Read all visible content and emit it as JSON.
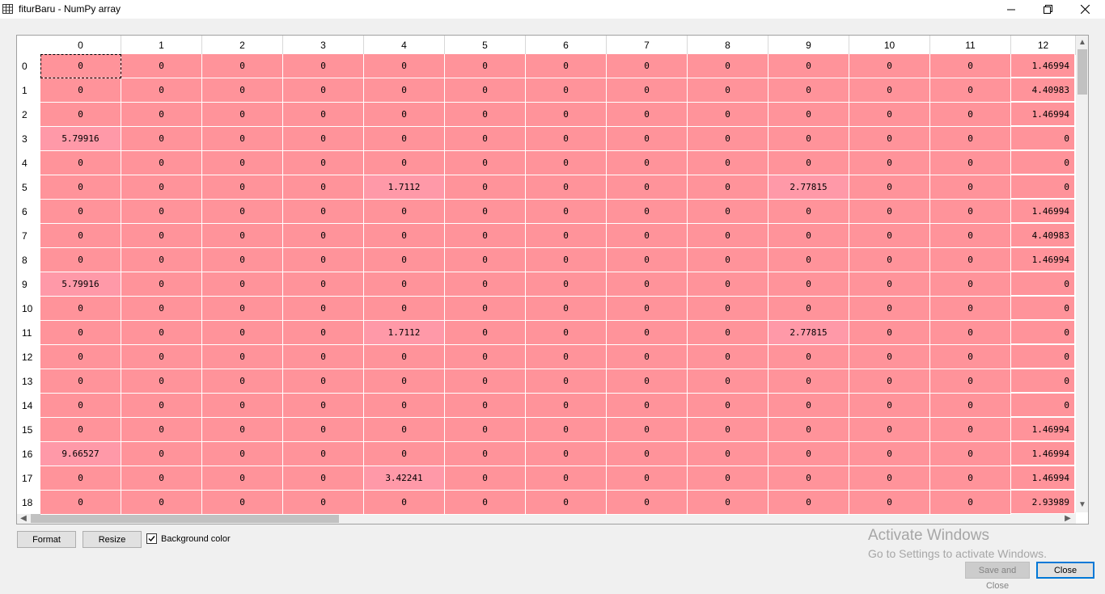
{
  "window": {
    "title": "fiturBaru - NumPy array"
  },
  "icons": {
    "app": "table-icon",
    "minimize": "minimize-icon",
    "maximize": "restore-icon",
    "close": "close-icon"
  },
  "table": {
    "columns": [
      "0",
      "1",
      "2",
      "3",
      "4",
      "5",
      "6",
      "7",
      "8",
      "9",
      "10",
      "11",
      "12"
    ],
    "rows": [
      {
        "label": "0",
        "cells": [
          "0",
          "0",
          "0",
          "0",
          "0",
          "0",
          "0",
          "0",
          "0",
          "0",
          "0",
          "0",
          "1.46994"
        ]
      },
      {
        "label": "1",
        "cells": [
          "0",
          "0",
          "0",
          "0",
          "0",
          "0",
          "0",
          "0",
          "0",
          "0",
          "0",
          "0",
          "4.40983"
        ]
      },
      {
        "label": "2",
        "cells": [
          "0",
          "0",
          "0",
          "0",
          "0",
          "0",
          "0",
          "0",
          "0",
          "0",
          "0",
          "0",
          "1.46994"
        ]
      },
      {
        "label": "3",
        "cells": [
          "5.79916",
          "0",
          "0",
          "0",
          "0",
          "0",
          "0",
          "0",
          "0",
          "0",
          "0",
          "0",
          "0"
        ]
      },
      {
        "label": "4",
        "cells": [
          "0",
          "0",
          "0",
          "0",
          "0",
          "0",
          "0",
          "0",
          "0",
          "0",
          "0",
          "0",
          "0"
        ]
      },
      {
        "label": "5",
        "cells": [
          "0",
          "0",
          "0",
          "0",
          "1.7112",
          "0",
          "0",
          "0",
          "0",
          "2.77815",
          "0",
          "0",
          "0"
        ]
      },
      {
        "label": "6",
        "cells": [
          "0",
          "0",
          "0",
          "0",
          "0",
          "0",
          "0",
          "0",
          "0",
          "0",
          "0",
          "0",
          "1.46994"
        ]
      },
      {
        "label": "7",
        "cells": [
          "0",
          "0",
          "0",
          "0",
          "0",
          "0",
          "0",
          "0",
          "0",
          "0",
          "0",
          "0",
          "4.40983"
        ]
      },
      {
        "label": "8",
        "cells": [
          "0",
          "0",
          "0",
          "0",
          "0",
          "0",
          "0",
          "0",
          "0",
          "0",
          "0",
          "0",
          "1.46994"
        ]
      },
      {
        "label": "9",
        "cells": [
          "5.79916",
          "0",
          "0",
          "0",
          "0",
          "0",
          "0",
          "0",
          "0",
          "0",
          "0",
          "0",
          "0"
        ]
      },
      {
        "label": "10",
        "cells": [
          "0",
          "0",
          "0",
          "0",
          "0",
          "0",
          "0",
          "0",
          "0",
          "0",
          "0",
          "0",
          "0"
        ]
      },
      {
        "label": "11",
        "cells": [
          "0",
          "0",
          "0",
          "0",
          "1.7112",
          "0",
          "0",
          "0",
          "0",
          "2.77815",
          "0",
          "0",
          "0"
        ]
      },
      {
        "label": "12",
        "cells": [
          "0",
          "0",
          "0",
          "0",
          "0",
          "0",
          "0",
          "0",
          "0",
          "0",
          "0",
          "0",
          "0"
        ]
      },
      {
        "label": "13",
        "cells": [
          "0",
          "0",
          "0",
          "0",
          "0",
          "0",
          "0",
          "0",
          "0",
          "0",
          "0",
          "0",
          "0"
        ]
      },
      {
        "label": "14",
        "cells": [
          "0",
          "0",
          "0",
          "0",
          "0",
          "0",
          "0",
          "0",
          "0",
          "0",
          "0",
          "0",
          "0"
        ]
      },
      {
        "label": "15",
        "cells": [
          "0",
          "0",
          "0",
          "0",
          "0",
          "0",
          "0",
          "0",
          "0",
          "0",
          "0",
          "0",
          "1.46994"
        ]
      },
      {
        "label": "16",
        "cells": [
          "9.66527",
          "0",
          "0",
          "0",
          "0",
          "0",
          "0",
          "0",
          "0",
          "0",
          "0",
          "0",
          "1.46994"
        ]
      },
      {
        "label": "17",
        "cells": [
          "0",
          "0",
          "0",
          "0",
          "3.42241",
          "0",
          "0",
          "0",
          "0",
          "0",
          "0",
          "0",
          "1.46994"
        ]
      },
      {
        "label": "18",
        "cells": [
          "0",
          "0",
          "0",
          "0",
          "0",
          "0",
          "0",
          "0",
          "0",
          "0",
          "0",
          "0",
          "2.93989"
        ]
      }
    ],
    "cell_color": "#ff939a",
    "highlight_color": "#ff99a8"
  },
  "footer": {
    "format_label": "Format",
    "resize_label": "Resize",
    "background_color_label": "Background color",
    "background_color_checked": true,
    "save_close_label": "Save and Close",
    "close_label": "Close"
  },
  "watermark": {
    "line1": "Activate Windows",
    "line2": "Go to Settings to activate Windows."
  }
}
